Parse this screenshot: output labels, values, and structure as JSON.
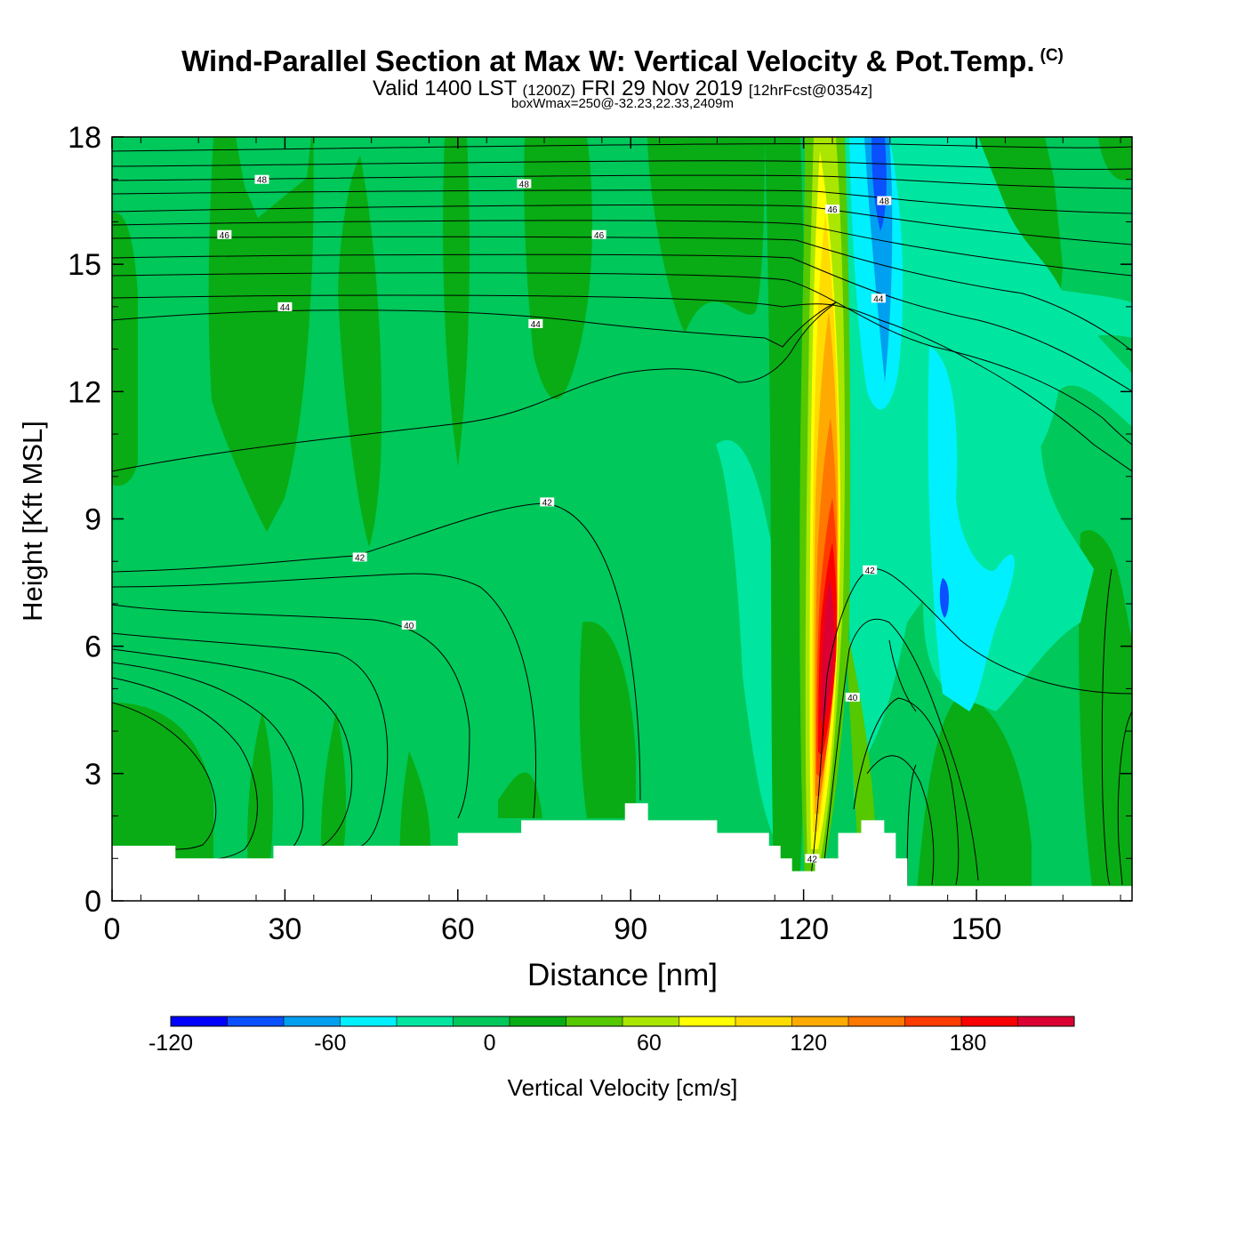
{
  "chart_data": {
    "type": "heatmap",
    "title": "Wind-Parallel Section at Max W: Vertical Velocity & Pot.Temp.",
    "copyright_mark": "(C)",
    "subtitle": {
      "valid": "Valid 1400 LST",
      "utc": "(1200Z)",
      "date": "FRI 29 Nov 2019",
      "forecast": "[12hrFcst@0354z]"
    },
    "subtitle2": "boxWmax=250@-32.23,22.33,2409m",
    "xlabel": "Distance [nm]",
    "ylabel": "Height [Kft MSL]",
    "xlim": [
      0,
      177
    ],
    "ylim": [
      0,
      18
    ],
    "xticks": [
      0,
      30,
      60,
      90,
      120,
      150
    ],
    "yticks": [
      0,
      3,
      6,
      9,
      12,
      15,
      18
    ],
    "colorbar": {
      "label": "Vertical Velocity [cm/s]",
      "min": -120,
      "max": 220,
      "step": 20,
      "tick_values": [
        -120,
        -60,
        0,
        60,
        120,
        180
      ],
      "tick_labels": [
        "-120",
        "-60",
        "0",
        "60",
        "120",
        "180"
      ],
      "colors": [
        "#0000ff",
        "#0a50ff",
        "#00a0f0",
        "#00f0ff",
        "#00e6a0",
        "#00c85a",
        "#09ac14",
        "#55c800",
        "#aae600",
        "#ffff00",
        "#ffdc00",
        "#ffaa00",
        "#ff7800",
        "#ff3c00",
        "#fa0000",
        "#dc0032"
      ]
    },
    "velocity_features": [
      {
        "name": "updraft core",
        "x": 124.5,
        "y": 6.5,
        "value": 250
      },
      {
        "name": "downdraft core",
        "x": 134,
        "y": 16.5,
        "value": -110
      },
      {
        "name": "downdraft lower",
        "x": 145,
        "y": 6.5,
        "value": -60
      }
    ],
    "terrain_profile": {
      "x": [
        0,
        11,
        11,
        28,
        28,
        60,
        60,
        71,
        71,
        89,
        89,
        93,
        93,
        105,
        105,
        114,
        114,
        116,
        116,
        118,
        118,
        120,
        120,
        122,
        122,
        126,
        126,
        130,
        130,
        134,
        134,
        136,
        136,
        138,
        138,
        177
      ],
      "y": [
        1.3,
        1.3,
        1.0,
        1.0,
        1.3,
        1.3,
        1.6,
        1.6,
        1.9,
        1.9,
        2.3,
        2.3,
        1.9,
        1.9,
        1.6,
        1.6,
        1.3,
        1.3,
        1.0,
        1.0,
        0.7,
        0.7,
        0.7,
        0.7,
        1.0,
        1.0,
        1.6,
        1.6,
        1.9,
        1.9,
        1.6,
        1.6,
        1.0,
        1.0,
        0.35,
        0.35
      ]
    },
    "theta_contours": [
      {
        "label": "40",
        "label_points": [
          [
            51.5,
            6.5
          ],
          [
            128.5,
            4.8
          ]
        ]
      },
      {
        "label": "42",
        "label_points": [
          [
            43,
            8.1
          ],
          [
            75.5,
            9.4
          ],
          [
            131.5,
            7.8
          ],
          [
            121.5,
            1.0
          ]
        ]
      },
      {
        "label": "44",
        "label_points": [
          [
            30,
            14.0
          ],
          [
            73.5,
            13.6
          ],
          [
            133,
            14.2
          ]
        ]
      },
      {
        "label": "46",
        "label_points": [
          [
            19.5,
            15.7
          ],
          [
            84.5,
            15.7
          ],
          [
            125,
            16.3
          ]
        ]
      },
      {
        "label": "48",
        "label_points": [
          [
            26,
            17.0
          ],
          [
            71.5,
            16.9
          ],
          [
            134,
            16.5
          ]
        ]
      }
    ]
  }
}
